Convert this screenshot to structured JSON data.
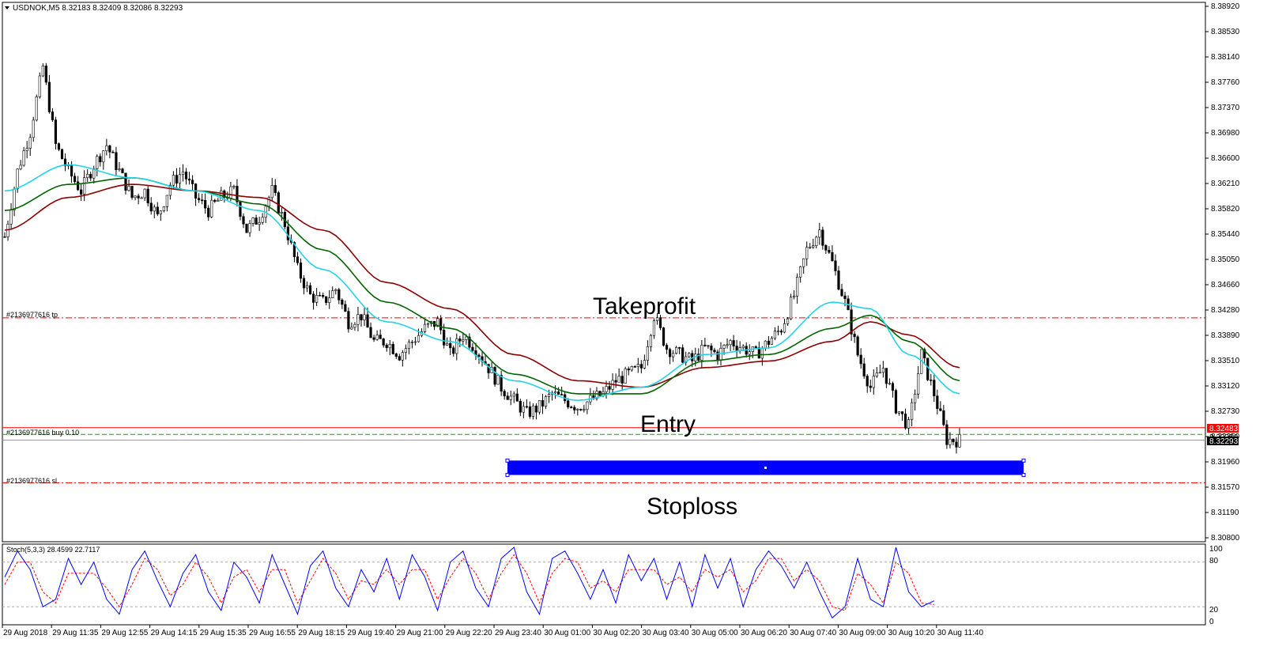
{
  "header": {
    "symbol_line": "USDNOK,M5  8.32183 8.32409 8.32086 8.32293"
  },
  "indicator": {
    "title": "Stoch(5,3,3) 28.4599 22.7117",
    "levels": [
      "100",
      "80",
      "20",
      "0"
    ]
  },
  "lines": {
    "tp_label": "#2136977616 tp",
    "entry_label": "#2136977616 buy 0.10",
    "sl_label": "#2136977616 sl"
  },
  "annotations": {
    "takeprofit": "Takeprofit",
    "entry": "Entry",
    "stoploss": "Stoploss"
  },
  "price_tags": {
    "entry": "8.32483",
    "current": "8.32293",
    "hidden": "8.32350"
  },
  "colors": {
    "bull": "#000000",
    "bear": "#000000",
    "ma_fast": "#22d3e6",
    "ma_mid": "#006400",
    "ma_slow": "#8b0000",
    "tp_line": "#ff0000",
    "sl_line": "#ff0000",
    "entry_line": "#ff0000",
    "bid_line": "#00b000",
    "rect": "#0000ff",
    "stoch_main": "#0000ff",
    "stoch_signal": "#ff0000"
  },
  "chart_data": {
    "type": "candlestick",
    "price_axis": {
      "min": 8.308,
      "max": 8.3892,
      "ticks": [
        "8.38920",
        "8.38530",
        "8.38140",
        "8.37760",
        "8.37370",
        "8.36980",
        "8.36600",
        "8.36210",
        "8.35820",
        "8.35440",
        "8.35050",
        "8.34660",
        "8.34280",
        "8.33890",
        "8.33510",
        "8.33120",
        "8.32730",
        "8.32350",
        "8.31960",
        "8.31570",
        "8.31190",
        "8.30800"
      ]
    },
    "time_axis": {
      "ticks": [
        "29 Aug 2018",
        "29 Aug 11:35",
        "29 Aug 12:55",
        "29 Aug 14:15",
        "29 Aug 15:35",
        "29 Aug 16:55",
        "29 Aug 18:15",
        "29 Aug 19:40",
        "29 Aug 21:00",
        "29 Aug 22:20",
        "29 Aug 23:40",
        "30 Aug 01:00",
        "30 Aug 02:20",
        "30 Aug 03:40",
        "30 Aug 05:00",
        "30 Aug 06:20",
        "30 Aug 07:40",
        "30 Aug 09:00",
        "30 Aug 10:20",
        "30 Aug 11:40"
      ]
    },
    "levels": {
      "takeprofit": 8.3416,
      "entry": 8.32483,
      "bid": 8.3238,
      "current": 8.32293,
      "stoploss": 8.3164
    },
    "rectangle": {
      "price_top": 8.3198,
      "price_bottom": 8.3176,
      "time_start": "29 Aug 23:40",
      "time_end": "30 Aug 11:40"
    },
    "close_path": [
      [
        0,
        8.354
      ],
      [
        4,
        8.364
      ],
      [
        8,
        8.37
      ],
      [
        12,
        8.38
      ],
      [
        16,
        8.368
      ],
      [
        20,
        8.364
      ],
      [
        24,
        8.361
      ],
      [
        28,
        8.365
      ],
      [
        32,
        8.368
      ],
      [
        36,
        8.364
      ],
      [
        40,
        8.36
      ],
      [
        44,
        8.361
      ],
      [
        48,
        8.357
      ],
      [
        52,
        8.362
      ],
      [
        56,
        8.364
      ],
      [
        60,
        8.36
      ],
      [
        64,
        8.358
      ],
      [
        68,
        8.36
      ],
      [
        72,
        8.361
      ],
      [
        76,
        8.355
      ],
      [
        80,
        8.357
      ],
      [
        84,
        8.361
      ],
      [
        88,
        8.356
      ],
      [
        92,
        8.349
      ],
      [
        96,
        8.345
      ],
      [
        100,
        8.344
      ],
      [
        104,
        8.346
      ],
      [
        108,
        8.341
      ],
      [
        112,
        8.342
      ],
      [
        116,
        8.338
      ],
      [
        120,
        8.338
      ],
      [
        124,
        8.336
      ],
      [
        128,
        8.338
      ],
      [
        132,
        8.34
      ],
      [
        136,
        8.341
      ],
      [
        140,
        8.336
      ],
      [
        144,
        8.339
      ],
      [
        148,
        8.337
      ],
      [
        152,
        8.334
      ],
      [
        156,
        8.331
      ],
      [
        160,
        8.329
      ],
      [
        164,
        8.327
      ],
      [
        168,
        8.328
      ],
      [
        172,
        8.33
      ],
      [
        176,
        8.329
      ],
      [
        180,
        8.328
      ],
      [
        184,
        8.329
      ],
      [
        188,
        8.33
      ],
      [
        192,
        8.332
      ],
      [
        196,
        8.333
      ],
      [
        200,
        8.334
      ],
      [
        204,
        8.342
      ],
      [
        208,
        8.337
      ],
      [
        212,
        8.336
      ],
      [
        216,
        8.335
      ],
      [
        220,
        8.337
      ],
      [
        224,
        8.336
      ],
      [
        228,
        8.338
      ],
      [
        232,
        8.337
      ],
      [
        236,
        8.336
      ],
      [
        240,
        8.338
      ],
      [
        244,
        8.34
      ],
      [
        248,
        8.345
      ],
      [
        252,
        8.352
      ],
      [
        256,
        8.355
      ],
      [
        260,
        8.35
      ],
      [
        264,
        8.344
      ],
      [
        268,
        8.336
      ],
      [
        272,
        8.331
      ],
      [
        276,
        8.334
      ],
      [
        280,
        8.328
      ],
      [
        284,
        8.325
      ],
      [
        288,
        8.336
      ],
      [
        292,
        8.33
      ],
      [
        296,
        8.323
      ],
      [
        300,
        8.3229
      ]
    ],
    "ma_fast": [
      [
        0,
        8.361
      ],
      [
        20,
        8.365
      ],
      [
        40,
        8.363
      ],
      [
        60,
        8.361
      ],
      [
        80,
        8.358
      ],
      [
        100,
        8.349
      ],
      [
        120,
        8.341
      ],
      [
        140,
        8.338
      ],
      [
        160,
        8.332
      ],
      [
        180,
        8.329
      ],
      [
        200,
        8.331
      ],
      [
        220,
        8.336
      ],
      [
        240,
        8.337
      ],
      [
        260,
        8.344
      ],
      [
        272,
        8.343
      ],
      [
        284,
        8.336
      ],
      [
        300,
        8.33
      ]
    ],
    "ma_mid": [
      [
        0,
        8.358
      ],
      [
        20,
        8.362
      ],
      [
        40,
        8.363
      ],
      [
        60,
        8.361
      ],
      [
        80,
        8.359
      ],
      [
        100,
        8.352
      ],
      [
        120,
        8.344
      ],
      [
        140,
        8.34
      ],
      [
        160,
        8.333
      ],
      [
        180,
        8.33
      ],
      [
        200,
        8.33
      ],
      [
        220,
        8.335
      ],
      [
        240,
        8.336
      ],
      [
        260,
        8.34
      ],
      [
        272,
        8.342
      ],
      [
        284,
        8.338
      ],
      [
        300,
        8.332
      ]
    ],
    "ma_slow": [
      [
        0,
        8.355
      ],
      [
        20,
        8.36
      ],
      [
        40,
        8.362
      ],
      [
        60,
        8.361
      ],
      [
        80,
        8.36
      ],
      [
        100,
        8.355
      ],
      [
        120,
        8.347
      ],
      [
        140,
        8.343
      ],
      [
        160,
        8.336
      ],
      [
        180,
        8.332
      ],
      [
        200,
        8.331
      ],
      [
        220,
        8.334
      ],
      [
        240,
        8.335
      ],
      [
        260,
        8.338
      ],
      [
        272,
        8.341
      ],
      [
        284,
        8.339
      ],
      [
        300,
        8.334
      ]
    ],
    "stochastic": {
      "main": [
        [
          0,
          60
        ],
        [
          4,
          95
        ],
        [
          8,
          70
        ],
        [
          12,
          20
        ],
        [
          16,
          30
        ],
        [
          20,
          85
        ],
        [
          24,
          50
        ],
        [
          28,
          80
        ],
        [
          32,
          30
        ],
        [
          36,
          10
        ],
        [
          40,
          70
        ],
        [
          44,
          95
        ],
        [
          48,
          55
        ],
        [
          52,
          20
        ],
        [
          56,
          65
        ],
        [
          60,
          90
        ],
        [
          64,
          40
        ],
        [
          68,
          15
        ],
        [
          72,
          80
        ],
        [
          76,
          60
        ],
        [
          80,
          25
        ],
        [
          84,
          90
        ],
        [
          88,
          50
        ],
        [
          92,
          10
        ],
        [
          96,
          75
        ],
        [
          100,
          95
        ],
        [
          104,
          45
        ],
        [
          108,
          20
        ],
        [
          112,
          70
        ],
        [
          116,
          40
        ],
        [
          120,
          85
        ],
        [
          124,
          30
        ],
        [
          128,
          90
        ],
        [
          132,
          60
        ],
        [
          136,
          15
        ],
        [
          140,
          80
        ],
        [
          144,
          95
        ],
        [
          148,
          45
        ],
        [
          152,
          20
        ],
        [
          156,
          85
        ],
        [
          160,
          100
        ],
        [
          164,
          40
        ],
        [
          168,
          10
        ],
        [
          172,
          85
        ],
        [
          176,
          95
        ],
        [
          180,
          65
        ],
        [
          184,
          30
        ],
        [
          188,
          70
        ],
        [
          192,
          25
        ],
        [
          196,
          90
        ],
        [
          200,
          55
        ],
        [
          204,
          85
        ],
        [
          208,
          30
        ],
        [
          212,
          80
        ],
        [
          216,
          20
        ],
        [
          220,
          90
        ],
        [
          224,
          45
        ],
        [
          228,
          85
        ],
        [
          232,
          20
        ],
        [
          236,
          70
        ],
        [
          240,
          95
        ],
        [
          244,
          75
        ],
        [
          248,
          45
        ],
        [
          252,
          80
        ],
        [
          256,
          40
        ],
        [
          260,
          5
        ],
        [
          264,
          20
        ],
        [
          268,
          85
        ],
        [
          272,
          30
        ],
        [
          276,
          20
        ],
        [
          280,
          100
        ],
        [
          284,
          40
        ],
        [
          288,
          20
        ],
        [
          292,
          28
        ]
      ],
      "signal": [
        [
          0,
          50
        ],
        [
          4,
          80
        ],
        [
          8,
          80
        ],
        [
          12,
          40
        ],
        [
          16,
          25
        ],
        [
          20,
          65
        ],
        [
          24,
          65
        ],
        [
          28,
          65
        ],
        [
          32,
          45
        ],
        [
          36,
          20
        ],
        [
          40,
          50
        ],
        [
          44,
          85
        ],
        [
          48,
          70
        ],
        [
          52,
          35
        ],
        [
          56,
          50
        ],
        [
          60,
          80
        ],
        [
          64,
          60
        ],
        [
          68,
          25
        ],
        [
          72,
          60
        ],
        [
          76,
          70
        ],
        [
          80,
          40
        ],
        [
          84,
          70
        ],
        [
          88,
          70
        ],
        [
          92,
          25
        ],
        [
          96,
          55
        ],
        [
          100,
          85
        ],
        [
          104,
          65
        ],
        [
          108,
          30
        ],
        [
          112,
          55
        ],
        [
          116,
          50
        ],
        [
          120,
          70
        ],
        [
          124,
          50
        ],
        [
          128,
          70
        ],
        [
          132,
          70
        ],
        [
          136,
          30
        ],
        [
          140,
          60
        ],
        [
          144,
          85
        ],
        [
          148,
          65
        ],
        [
          152,
          30
        ],
        [
          156,
          65
        ],
        [
          160,
          90
        ],
        [
          164,
          65
        ],
        [
          168,
          25
        ],
        [
          172,
          65
        ],
        [
          176,
          85
        ],
        [
          180,
          80
        ],
        [
          184,
          45
        ],
        [
          188,
          55
        ],
        [
          192,
          40
        ],
        [
          196,
          70
        ],
        [
          200,
          70
        ],
        [
          204,
          70
        ],
        [
          208,
          50
        ],
        [
          212,
          60
        ],
        [
          216,
          40
        ],
        [
          220,
          70
        ],
        [
          224,
          60
        ],
        [
          228,
          70
        ],
        [
          232,
          40
        ],
        [
          236,
          55
        ],
        [
          240,
          85
        ],
        [
          244,
          85
        ],
        [
          248,
          55
        ],
        [
          252,
          70
        ],
        [
          256,
          55
        ],
        [
          260,
          20
        ],
        [
          264,
          15
        ],
        [
          268,
          65
        ],
        [
          272,
          50
        ],
        [
          276,
          25
        ],
        [
          280,
          80
        ],
        [
          284,
          65
        ],
        [
          288,
          25
        ],
        [
          292,
          23
        ]
      ]
    }
  }
}
